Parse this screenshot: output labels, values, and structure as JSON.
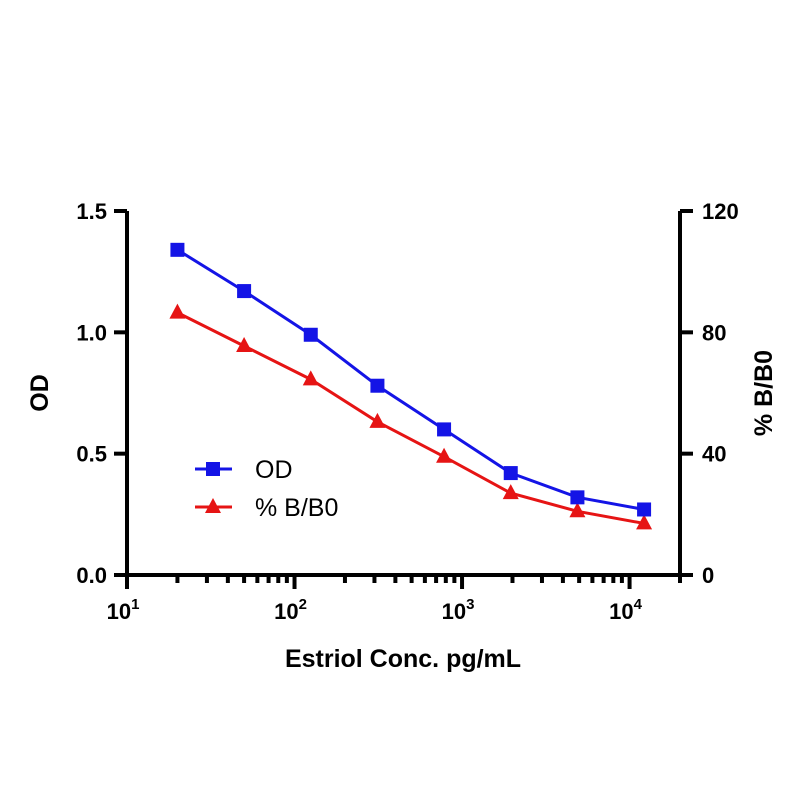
{
  "chart_data": {
    "type": "line",
    "xscale": "log",
    "x": [
      20,
      50,
      125,
      312.5,
      781,
      1953,
      4883,
      12207
    ],
    "xlim": [
      10,
      20000
    ],
    "x_ticks": [
      {
        "base": "10",
        "exp": "1"
      },
      {
        "base": "10",
        "exp": "2"
      },
      {
        "base": "10",
        "exp": "3"
      },
      {
        "base": "10",
        "exp": "4"
      }
    ],
    "xlabel": "Estriol Conc. pg/mL",
    "ylabel_left": "OD",
    "ylabel_right": "% B/B0",
    "ylim_left": [
      0,
      1.5
    ],
    "ylim_right": [
      0,
      120
    ],
    "yticks_left": [
      "0.0",
      "0.5",
      "1.0",
      "1.5"
    ],
    "yticks_right": [
      "0",
      "40",
      "80",
      "120"
    ],
    "series": [
      {
        "name": "OD",
        "axis": "left",
        "color": "#1414e6",
        "marker": "square",
        "values": [
          1.34,
          1.17,
          0.99,
          0.78,
          0.6,
          0.42,
          0.32,
          0.27
        ]
      },
      {
        "name": "% B/B0",
        "axis": "right",
        "color": "#e61414",
        "marker": "triangle",
        "values": [
          86.5,
          75.5,
          64.5,
          50.5,
          39.0,
          27.0,
          21.0,
          17.0
        ]
      }
    ],
    "legend_position": "lower-left-inside",
    "grid": false
  }
}
